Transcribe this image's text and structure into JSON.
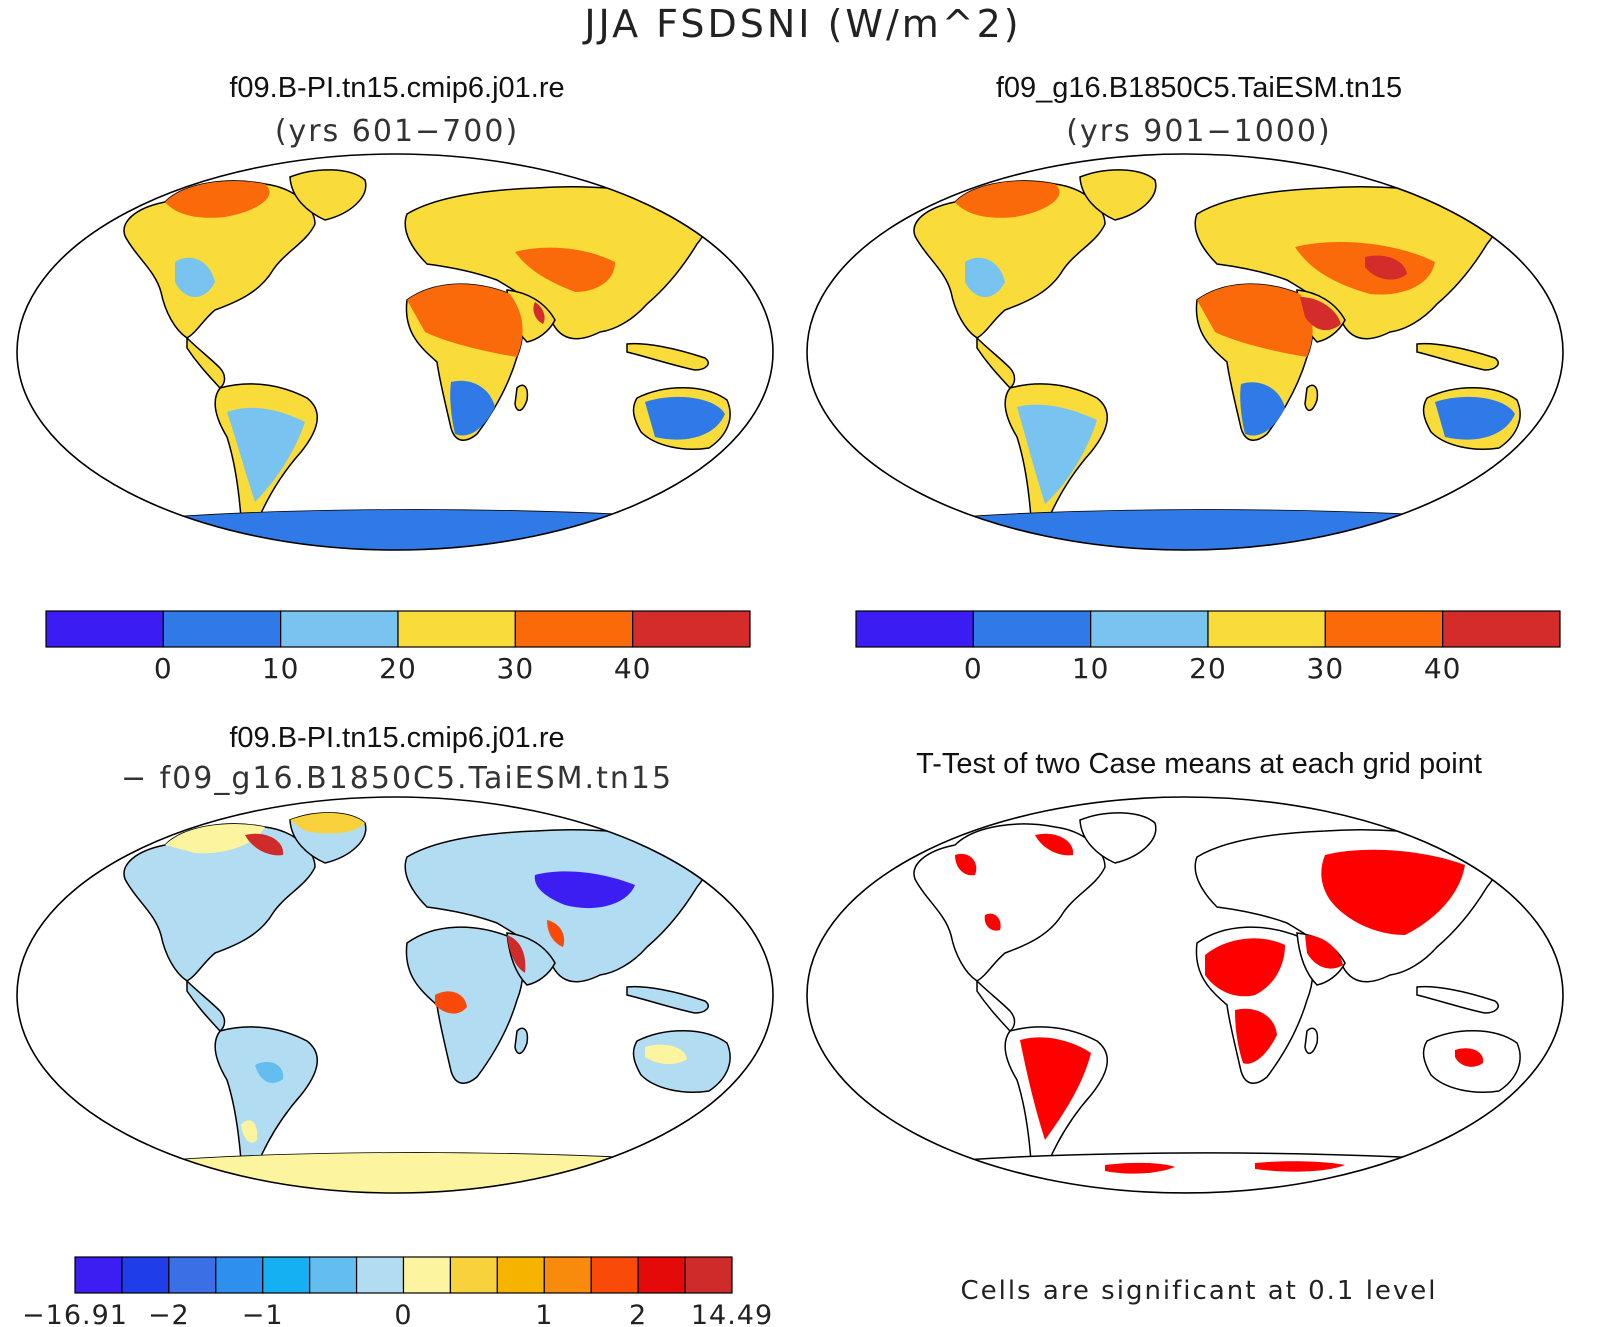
{
  "figure": {
    "title": "JJA FSDSNI (W/m^2)"
  },
  "panels": [
    {
      "title": "f09.B-PI.tn15.cmip6.j01.re",
      "subtitle": "(yrs 601−700)",
      "colorbar": {
        "colors": [
          "#3b1cf2",
          "#2f7ae6",
          "#78c3ef",
          "#f9dc3a",
          "#fa6a0a",
          "#d42b2b"
        ],
        "labels": [
          "0",
          "10",
          "20",
          "30",
          "40"
        ]
      }
    },
    {
      "title": "f09_g16.B1850C5.TaiESM.tn15",
      "subtitle": "(yrs 901−1000)",
      "colorbar": {
        "colors": [
          "#3b1cf2",
          "#2f7ae6",
          "#78c3ef",
          "#f9dc3a",
          "#fa6a0a",
          "#d42b2b"
        ],
        "labels": [
          "0",
          "10",
          "20",
          "30",
          "40"
        ]
      }
    },
    {
      "title": "f09.B-PI.tn15.cmip6.j01.re",
      "subtitle": "− f09_g16.B1850C5.TaiESM.tn15",
      "colorbar": {
        "colors": [
          "#3d1ef2",
          "#1f3de8",
          "#3a6fe6",
          "#2f8fee",
          "#15b0f2",
          "#63bdee",
          "#b1dcf2",
          "#fdf4a0",
          "#f7d23c",
          "#f6b400",
          "#f88a0c",
          "#fa4a0a",
          "#e50a0a",
          "#cf2b2b"
        ],
        "labels": [
          "−16.91",
          "−2",
          "−1",
          "0",
          "1",
          "2",
          "14.49"
        ]
      }
    },
    {
      "title": "T-Test of two Case means at each grid point",
      "note": "Cells are significant at 0.1 level"
    }
  ],
  "legend_colors": {
    "significant": "#ff0000",
    "coast": "#000000"
  }
}
